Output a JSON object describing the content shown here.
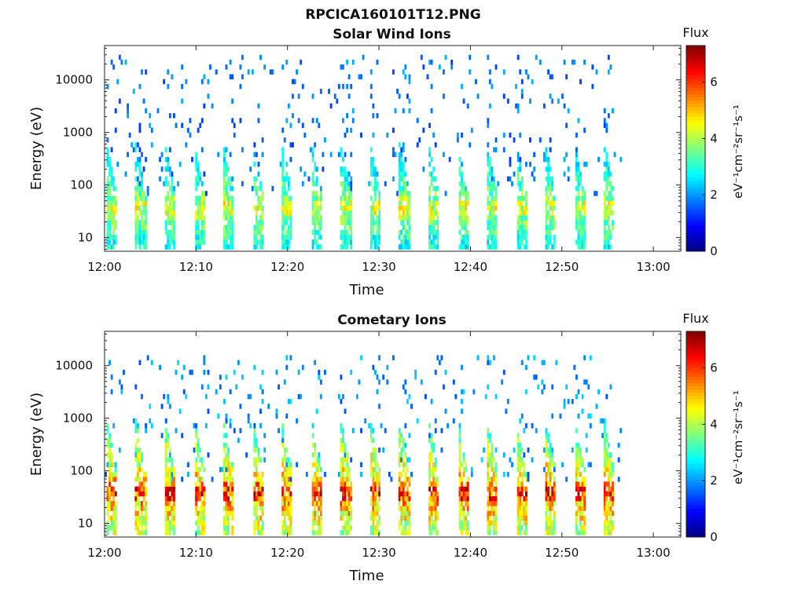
{
  "figure": {
    "title": "RPCICA160101T12.PNG"
  },
  "colormap": [
    "#00007f",
    "#0000ff",
    "#007fff",
    "#00ffff",
    "#7fff7f",
    "#ffff00",
    "#ff7f00",
    "#ff0000",
    "#7f0000"
  ],
  "chart_data": [
    {
      "type": "heatmap",
      "title": "Solar Wind Ions",
      "xlabel": "Time",
      "ylabel": "Energy (eV)",
      "x_ticks": [
        "12:00",
        "12:10",
        "12:20",
        "12:30",
        "12:40",
        "12:50",
        "13:00"
      ],
      "x_tick_minutes": [
        0,
        10,
        20,
        30,
        40,
        50,
        60
      ],
      "xlim_minutes": [
        0,
        63
      ],
      "data_end_minute": 56.5,
      "y_scale": "log",
      "y_ticks": [
        "10",
        "100",
        "1000",
        "10000"
      ],
      "y_tick_values": [
        10,
        100,
        1000,
        10000
      ],
      "ylim": [
        5.5,
        45000
      ],
      "colorbar": {
        "title": "Flux",
        "label": "eV⁻¹cm⁻²sr⁻¹s⁻¹",
        "ticks": [
          "0",
          "2",
          "4",
          "6"
        ],
        "tick_values": [
          0,
          2,
          4,
          6
        ],
        "range": [
          0,
          7.3
        ]
      },
      "sweep": {
        "period_minutes": 3.2,
        "count": 18,
        "start_minute": 0.1
      },
      "profile": {
        "peak_energy_ev": 35,
        "peak_flux": 4.6,
        "low_energy_flux": 4.0,
        "upper_extent_ev": 600,
        "upper_flux": 2.6,
        "scattered_flux": 1.6,
        "scattered_max_energy_ev": 25000
      }
    },
    {
      "type": "heatmap",
      "title": "Cometary Ions",
      "xlabel": "Time",
      "ylabel": "Energy (eV)",
      "x_ticks": [
        "12:00",
        "12:10",
        "12:20",
        "12:30",
        "12:40",
        "12:50",
        "13:00"
      ],
      "x_tick_minutes": [
        0,
        10,
        20,
        30,
        40,
        50,
        60
      ],
      "xlim_minutes": [
        0,
        63
      ],
      "data_end_minute": 56.5,
      "y_scale": "log",
      "y_ticks": [
        "10",
        "100",
        "1000",
        "10000"
      ],
      "y_tick_values": [
        10,
        100,
        1000,
        10000
      ],
      "ylim": [
        5.5,
        45000
      ],
      "colorbar": {
        "title": "Flux",
        "label": "eV⁻¹cm⁻²sr⁻¹s⁻¹",
        "ticks": [
          "0",
          "2",
          "4",
          "6"
        ],
        "tick_values": [
          0,
          2,
          4,
          6
        ],
        "range": [
          0,
          7.3
        ]
      },
      "sweep": {
        "period_minutes": 3.2,
        "count": 18,
        "start_minute": 0.1
      },
      "profile": {
        "peak_energy_ev": 38,
        "peak_flux": 6.6,
        "low_energy_flux": 5.6,
        "upper_extent_ev": 900,
        "upper_flux": 3.4,
        "scattered_flux": 1.8,
        "scattered_max_energy_ev": 15000
      }
    }
  ]
}
